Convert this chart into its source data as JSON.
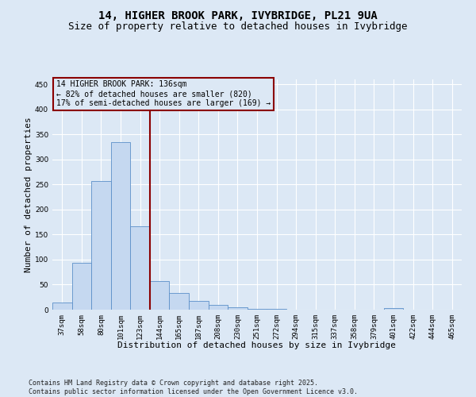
{
  "title_line1": "14, HIGHER BROOK PARK, IVYBRIDGE, PL21 9UA",
  "title_line2": "Size of property relative to detached houses in Ivybridge",
  "xlabel": "Distribution of detached houses by size in Ivybridge",
  "ylabel": "Number of detached properties",
  "bar_color": "#c5d8f0",
  "bar_edge_color": "#5b8fc9",
  "bg_color": "#dce8f5",
  "grid_color": "#ffffff",
  "vline_color": "#8b0000",
  "annotation_box_edge_color": "#8b0000",
  "categories": [
    "37sqm",
    "58sqm",
    "80sqm",
    "101sqm",
    "123sqm",
    "144sqm",
    "165sqm",
    "187sqm",
    "208sqm",
    "230sqm",
    "251sqm",
    "272sqm",
    "294sqm",
    "315sqm",
    "337sqm",
    "358sqm",
    "379sqm",
    "401sqm",
    "422sqm",
    "444sqm",
    "465sqm"
  ],
  "values": [
    14,
    93,
    257,
    335,
    167,
    57,
    33,
    18,
    10,
    5,
    2,
    1,
    0,
    0,
    0,
    0,
    0,
    3,
    0,
    0,
    0
  ],
  "ylim": [
    0,
    460
  ],
  "yticks": [
    0,
    50,
    100,
    150,
    200,
    250,
    300,
    350,
    400,
    450
  ],
  "annotation_line1": "14 HIGHER BROOK PARK: 136sqm",
  "annotation_line2": "← 82% of detached houses are smaller (820)",
  "annotation_line3": "17% of semi-detached houses are larger (169) →",
  "footer_text": "Contains HM Land Registry data © Crown copyright and database right 2025.\nContains public sector information licensed under the Open Government Licence v3.0.",
  "title_fontsize": 10,
  "subtitle_fontsize": 9,
  "tick_fontsize": 6.5,
  "axis_label_fontsize": 8,
  "footer_fontsize": 6,
  "annotation_fontsize": 7,
  "vline_x": 5.0
}
